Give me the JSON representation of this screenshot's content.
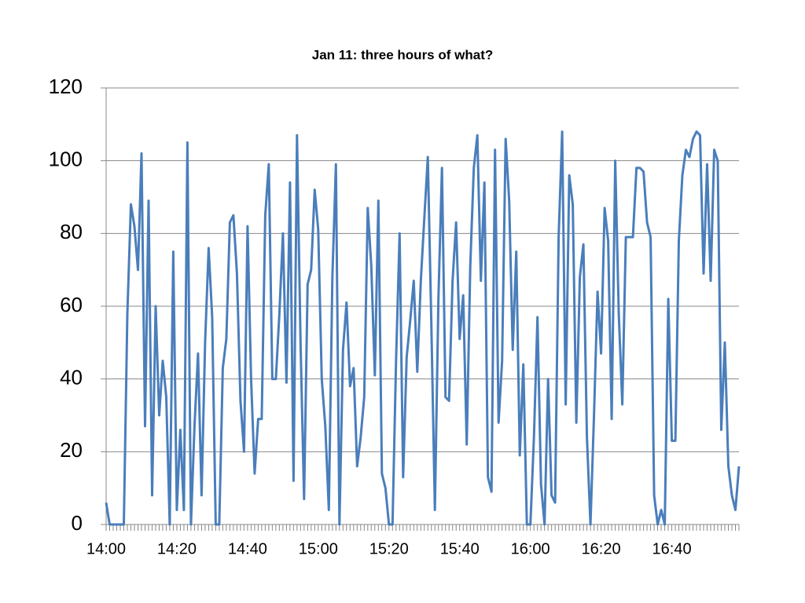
{
  "chart_data": {
    "type": "line",
    "title": "Jan 11: three hours of what?",
    "categories": [
      "14:00",
      null,
      null,
      null,
      null,
      null,
      null,
      null,
      null,
      null,
      null,
      null,
      null,
      null,
      null,
      null,
      null,
      null,
      null,
      null,
      "14:20",
      null,
      null,
      null,
      null,
      null,
      null,
      null,
      null,
      null,
      null,
      null,
      null,
      null,
      null,
      null,
      null,
      null,
      null,
      null,
      "14:40",
      null,
      null,
      null,
      null,
      null,
      null,
      null,
      null,
      null,
      null,
      null,
      null,
      null,
      null,
      null,
      null,
      null,
      null,
      null,
      "15:00",
      null,
      null,
      null,
      null,
      null,
      null,
      null,
      null,
      null,
      null,
      null,
      null,
      null,
      null,
      null,
      null,
      null,
      null,
      null,
      "15:20",
      null,
      null,
      null,
      null,
      null,
      null,
      null,
      null,
      null,
      null,
      null,
      null,
      null,
      null,
      null,
      null,
      null,
      null,
      null,
      "15:40",
      null,
      null,
      null,
      null,
      null,
      null,
      null,
      null,
      null,
      null,
      null,
      null,
      null,
      null,
      null,
      null,
      null,
      null,
      null,
      "16:00",
      null,
      null,
      null,
      null,
      null,
      null,
      null,
      null,
      null,
      null,
      null,
      null,
      null,
      null,
      null,
      null,
      null,
      null,
      null,
      "16:20",
      null,
      null,
      null,
      null,
      null,
      null,
      null,
      null,
      null,
      null,
      null,
      null,
      null,
      null,
      null,
      null,
      null,
      null,
      null,
      "16:40",
      null,
      null,
      null,
      null,
      null,
      null,
      null,
      null,
      null,
      null,
      null,
      null,
      null,
      null,
      null,
      null,
      null,
      null,
      null
    ],
    "values": [
      6,
      0,
      0,
      0,
      0,
      0,
      58,
      88,
      82,
      70,
      102,
      27,
      89,
      8,
      60,
      30,
      45,
      35,
      0,
      75,
      4,
      26,
      4,
      105,
      0,
      27,
      47,
      8,
      50,
      76,
      57,
      0,
      0,
      43,
      51,
      83,
      85,
      69,
      34,
      20,
      82,
      40,
      14,
      29,
      29,
      85,
      99,
      40,
      40,
      58,
      80,
      39,
      94,
      12,
      107,
      50,
      7,
      66,
      70,
      92,
      81,
      40,
      27,
      4,
      68,
      99,
      0,
      48,
      61,
      38,
      43,
      16,
      24,
      35,
      87,
      71,
      41,
      89,
      14,
      10,
      0,
      0,
      45,
      80,
      13,
      46,
      56,
      67,
      42,
      67,
      84,
      101,
      55,
      4,
      62,
      98,
      35,
      34,
      67,
      83,
      51,
      63,
      22,
      71,
      98,
      107,
      67,
      94,
      13,
      9,
      103,
      28,
      45,
      106,
      89,
      48,
      75,
      19,
      44,
      0,
      0,
      24,
      57,
      11,
      0,
      40,
      8,
      6,
      79,
      108,
      33,
      96,
      88,
      28,
      68,
      77,
      24,
      0,
      30,
      64,
      47,
      87,
      78,
      29,
      100,
      58,
      33,
      79,
      79,
      79,
      98,
      98,
      97,
      83,
      79,
      8,
      0,
      4,
      0,
      62,
      23,
      23,
      78,
      96,
      103,
      101,
      106,
      108,
      107,
      69,
      99,
      67,
      103,
      100,
      26,
      50,
      16,
      8,
      4,
      16
    ],
    "color": "#4a7ebb",
    "ylim": [
      0,
      120
    ],
    "yticks": [
      0,
      20,
      40,
      60,
      80,
      100,
      120
    ],
    "grid": true
  }
}
